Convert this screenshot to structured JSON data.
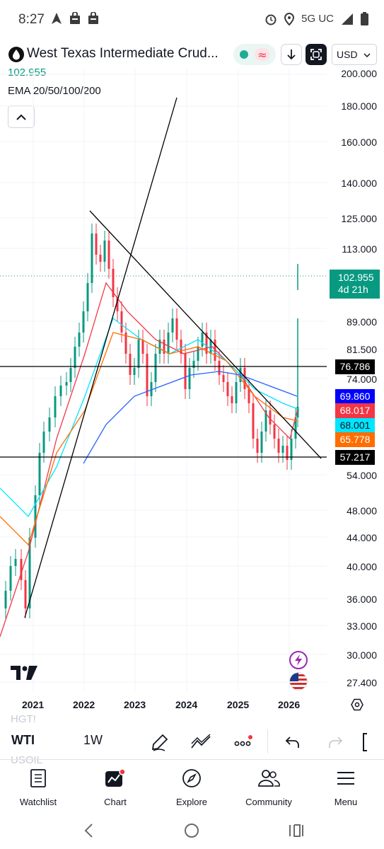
{
  "status_bar": {
    "time": "8:27",
    "network": "5G UC",
    "icons": [
      "navigation-icon",
      "shopping-bag-icon",
      "shopping-bag-icon",
      "alarm-icon",
      "location-icon",
      "signal-icon",
      "battery-icon"
    ]
  },
  "header": {
    "symbol_title": "West Texas Intermediate Crud...",
    "currency": "USD",
    "last_price": "102.955",
    "indicator": "EMA 20/50/100/200",
    "colors": {
      "up": "#089981",
      "down": "#f23645"
    }
  },
  "price_scale": [
    "200.000",
    "180.000",
    "160.000",
    "140.000",
    "125.000",
    "113.000",
    "89.000",
    "81.500",
    "74.000",
    "54.000",
    "48.000",
    "44.000",
    "40.000",
    "36.000",
    "33.000",
    "30.000",
    "27.400"
  ],
  "price_tags": {
    "live": {
      "price": "102.955",
      "countdown": "4d 21h",
      "color": "#089981"
    },
    "line_upper": {
      "value": "76.786",
      "color": "#000000"
    },
    "ema_200": {
      "value": "69.860",
      "color": "#0000ff"
    },
    "ema_20": {
      "value": "68.017",
      "color": "#f23645"
    },
    "ema_50": {
      "value": "68.001",
      "color": "#00e5ff"
    },
    "ema_100": {
      "value": "65.778",
      "color": "#ff6d00"
    },
    "line_lower": {
      "value": "57.217",
      "color": "#000000"
    }
  },
  "time_scale": [
    "2021",
    "2022",
    "2023",
    "2024",
    "2025",
    "2026"
  ],
  "toolbar": {
    "ghost_above": "HGT!",
    "ghost_below": "USOIL",
    "symbol": "WTI",
    "interval": "1W"
  },
  "bottom_nav": [
    {
      "label": "Watchlist",
      "icon": "watchlist-icon"
    },
    {
      "label": "Chart",
      "icon": "chart-icon"
    },
    {
      "label": "Explore",
      "icon": "compass-icon"
    },
    {
      "label": "Community",
      "icon": "community-icon"
    },
    {
      "label": "Menu",
      "icon": "menu-icon"
    }
  ]
}
